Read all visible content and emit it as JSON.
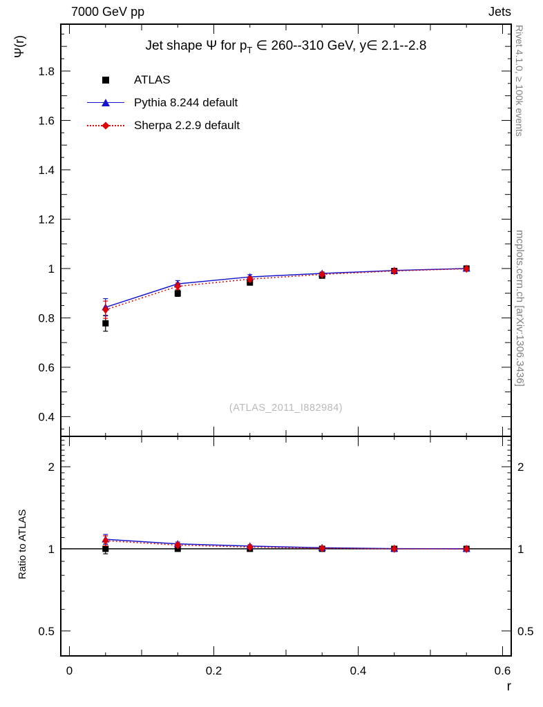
{
  "page": {
    "top_left_label": "7000 GeV pp",
    "top_right_label": "Jets",
    "right_side_top": "Rivet 4.1.0, ≥ 100k events",
    "right_side_bottom": "mcplots.cern.ch [arXiv:1306.3436]"
  },
  "chart_data": {
    "type": "line",
    "title": "Jet shape Ψ for pT ∈ 260--310 GeV, y∈ 2.1--2.8",
    "title_parts": {
      "pre": "Jet shape Ψ for p",
      "sub": "T",
      "post": " ∈ 260--310 GeV, y∈ 2.1--2.8"
    },
    "watermark": "(ATLAS_2011_I882984)",
    "xlabel": "r",
    "xlim": [
      -0.012,
      0.612
    ],
    "xticks": [
      0,
      0.2,
      0.4,
      0.6
    ],
    "xtick_labels": [
      "0",
      "0.2",
      "0.4",
      "0.6"
    ],
    "x_values": [
      0.05,
      0.15,
      0.25,
      0.35,
      0.45,
      0.55
    ],
    "grid": false,
    "legend_position": "top-left",
    "legend": [
      {
        "label": "ATLAS",
        "marker": "square",
        "line": "none",
        "color": "#000000"
      },
      {
        "label": "Pythia 8.244 default",
        "marker": "triangle",
        "line": "solid",
        "color": "#1515cc"
      },
      {
        "label": "Sherpa 2.2.9 default",
        "marker": "diamond",
        "line": "dotted",
        "color": "#dd0000"
      }
    ],
    "top_panel": {
      "ylabel": "Ψ(r)",
      "scale": "linear",
      "ylim": [
        0.32,
        1.99
      ],
      "yticks": [
        0.4,
        0.6,
        0.8,
        1,
        1.2,
        1.4,
        1.6,
        1.8
      ],
      "series": [
        {
          "name": "ATLAS",
          "marker": "square",
          "line": "none",
          "color": "#000000",
          "values": [
            0.778,
            0.899,
            0.943,
            0.971,
            0.99,
            1.0
          ],
          "errors": [
            0.032,
            0.012,
            0.009,
            0.006,
            0.005,
            0.004
          ]
        },
        {
          "name": "Pythia 8.244 default",
          "marker": "triangle",
          "line": "solid",
          "color": "#1515cc",
          "values": [
            0.843,
            0.938,
            0.966,
            0.98,
            0.992,
            1.0
          ],
          "errors": [
            0.035,
            0.013,
            0.009,
            0.006,
            0.004,
            0.003
          ]
        },
        {
          "name": "Sherpa 2.2.9 default",
          "marker": "diamond",
          "line": "dotted",
          "color": "#dd0000",
          "values": [
            0.833,
            0.928,
            0.957,
            0.976,
            0.99,
            0.999
          ],
          "errors": [
            0.035,
            0.013,
            0.009,
            0.006,
            0.004,
            0.003
          ]
        }
      ]
    },
    "bottom_panel": {
      "ylabel": "Ratio to ATLAS",
      "scale": "log",
      "ylim": [
        0.405,
        2.585
      ],
      "yticks": [
        0.5,
        1,
        2
      ],
      "reference_line": 1,
      "series": [
        {
          "name": "ATLAS",
          "marker": "square",
          "line": "none",
          "color": "#000000",
          "values": [
            1.0,
            1.0,
            1.0,
            1.0,
            1.0,
            1.0
          ],
          "errors": [
            0.041,
            0.013,
            0.009,
            0.006,
            0.005,
            0.004
          ]
        },
        {
          "name": "Pythia 8.244 default",
          "marker": "triangle",
          "line": "solid",
          "color": "#1515cc",
          "values": [
            1.084,
            1.043,
            1.024,
            1.009,
            1.002,
            1.0
          ],
          "errors": [
            0.045,
            0.016,
            0.011,
            0.007,
            0.005,
            0.004
          ]
        },
        {
          "name": "Sherpa 2.2.9 default",
          "marker": "diamond",
          "line": "dotted",
          "color": "#dd0000",
          "values": [
            1.071,
            1.032,
            1.015,
            1.005,
            1.0,
            0.999
          ],
          "errors": [
            0.045,
            0.016,
            0.011,
            0.007,
            0.005,
            0.004
          ]
        }
      ]
    }
  }
}
